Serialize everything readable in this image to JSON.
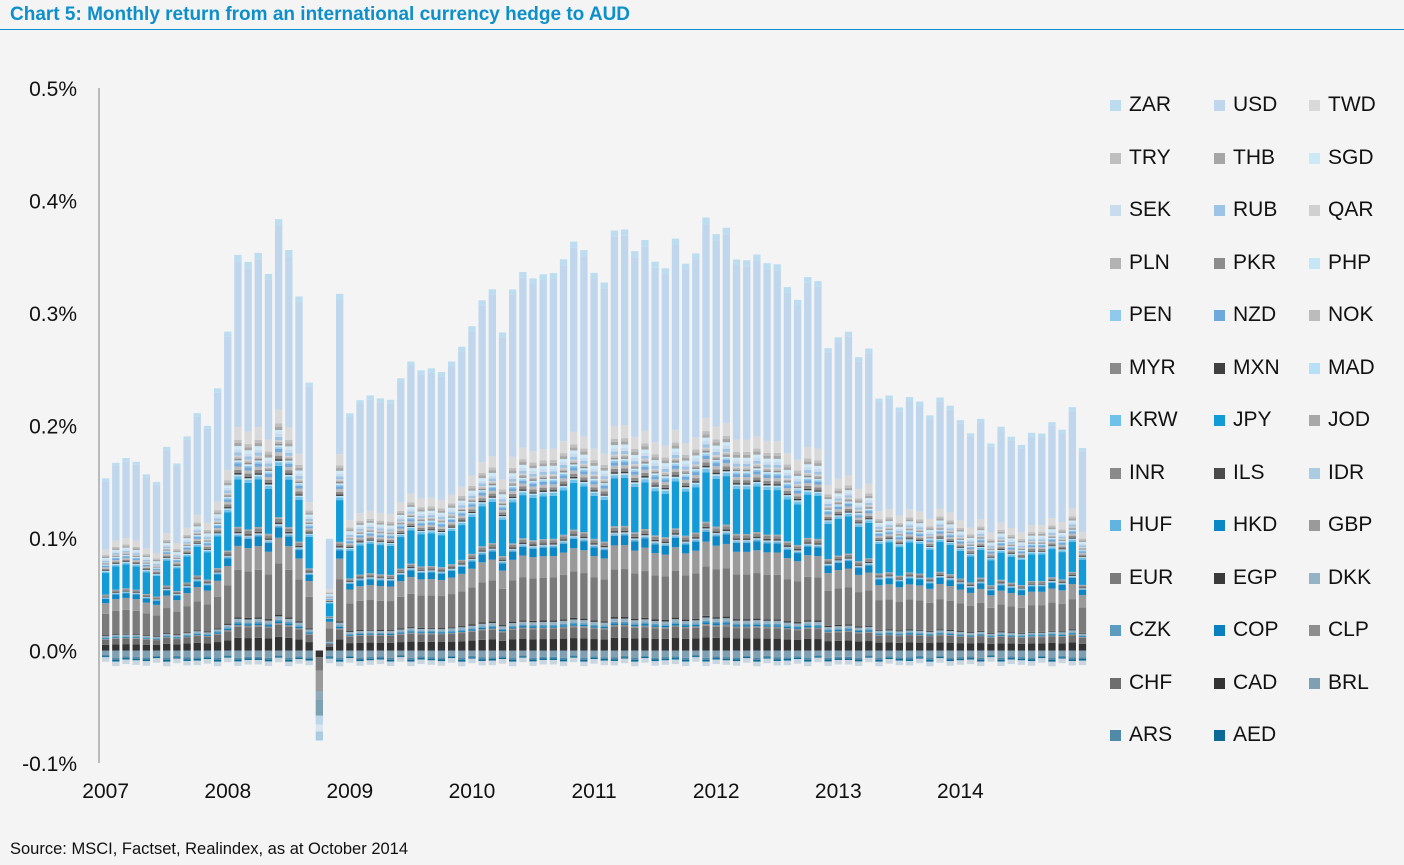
{
  "title": "Chart 5: Monthly return from an international currency hedge to AUD",
  "source": "Source: MSCI, Factset, Realindex, as at October 2014",
  "chart_data": {
    "type": "bar",
    "stacked": true,
    "title": "Chart 5: Monthly return from an international currency hedge to AUD",
    "xlabel": "",
    "ylabel": "",
    "ylim": [
      -0.1,
      0.5
    ],
    "yticks": [
      -0.1,
      0.0,
      0.1,
      0.2,
      0.3,
      0.4,
      0.5
    ],
    "ytick_labels": [
      "-0.1%",
      "0.0%",
      "0.1%",
      "0.2%",
      "0.3%",
      "0.4%",
      "0.5%"
    ],
    "xtick_labels": [
      "2007",
      "2008",
      "2009",
      "2010",
      "2011",
      "2012",
      "2013",
      "2014"
    ],
    "x_range": [
      "2007-01",
      "2014-09"
    ],
    "legend_position": "right",
    "grid": false,
    "monthly_totals": [
      0.147,
      0.157,
      0.163,
      0.159,
      0.147,
      0.143,
      0.171,
      0.159,
      0.181,
      0.202,
      0.192,
      0.223,
      0.277,
      0.342,
      0.337,
      0.345,
      0.325,
      0.377,
      0.346,
      0.307,
      0.229,
      -0.08,
      0.092,
      0.307,
      0.204,
      0.213,
      0.218,
      0.216,
      0.213,
      0.236,
      0.247,
      0.241,
      0.242,
      0.238,
      0.25,
      0.26,
      0.281,
      0.302,
      0.312,
      0.275,
      0.311,
      0.33,
      0.321,
      0.326,
      0.327,
      0.338,
      0.357,
      0.346,
      0.328,
      0.318,
      0.364,
      0.367,
      0.345,
      0.358,
      0.336,
      0.331,
      0.358,
      0.334,
      0.347,
      0.375,
      0.362,
      0.367,
      0.338,
      0.34,
      0.342,
      0.337,
      0.334,
      0.314,
      0.304,
      0.322,
      0.322,
      0.259,
      0.27,
      0.275,
      0.251,
      0.262,
      0.214,
      0.219,
      0.207,
      0.216,
      0.214,
      0.199,
      0.218,
      0.208,
      0.196,
      0.185,
      0.196,
      0.178,
      0.189,
      0.182,
      0.174,
      0.184,
      0.186,
      0.193,
      0.189,
      0.207,
      0.171
    ],
    "composition_note": "Estimated average currency contributions (percentage points) to each monthly total",
    "series": [
      {
        "name": "ZAR",
        "color": "#bcdcf0",
        "approx_share": 0.004
      },
      {
        "name": "USD",
        "color": "#bfd6ec",
        "approx_share": 0.095
      },
      {
        "name": "TWD",
        "color": "#d9d9d9",
        "approx_share": 0.008
      },
      {
        "name": "TRY",
        "color": "#bfbfbf",
        "approx_share": 0.002
      },
      {
        "name": "THB",
        "color": "#a6a6a6",
        "approx_share": 0.002
      },
      {
        "name": "SGD",
        "color": "#cce9f8",
        "approx_share": 0.002
      },
      {
        "name": "SEK",
        "color": "#c8dcee",
        "approx_share": 0.002
      },
      {
        "name": "RUB",
        "color": "#9dc3e6",
        "approx_share": 0.002
      },
      {
        "name": "QAR",
        "color": "#d0d0d0",
        "approx_share": 0.001
      },
      {
        "name": "PLN",
        "color": "#b3b3b3",
        "approx_share": 0.001
      },
      {
        "name": "PKR",
        "color": "#8c8c8c",
        "approx_share": 0.001
      },
      {
        "name": "PHP",
        "color": "#c5e6f7",
        "approx_share": 0.001
      },
      {
        "name": "PEN",
        "color": "#8fc9ec",
        "approx_share": 0.001
      },
      {
        "name": "NZD",
        "color": "#6fa8dc",
        "approx_share": 0.002
      },
      {
        "name": "NOK",
        "color": "#bcbcbc",
        "approx_share": 0.002
      },
      {
        "name": "MYR",
        "color": "#8a8a8a",
        "approx_share": 0.002
      },
      {
        "name": "MXN",
        "color": "#404040",
        "approx_share": 0.001
      },
      {
        "name": "MAD",
        "color": "#b6e0f5",
        "approx_share": 0.001
      },
      {
        "name": "KRW",
        "color": "#6ec1ea",
        "approx_share": 0.002
      },
      {
        "name": "JPY",
        "color": "#139bd8",
        "approx_share": 0.03
      },
      {
        "name": "JOD",
        "color": "#a8a8a8",
        "approx_share": 0.001
      },
      {
        "name": "INR",
        "color": "#8a8a8a",
        "approx_share": 0.002
      },
      {
        "name": "ILS",
        "color": "#4a4a4a",
        "approx_share": 0.001
      },
      {
        "name": "IDR",
        "color": "#a9cce3",
        "approx_share": 0.001
      },
      {
        "name": "HUF",
        "color": "#62b4e0",
        "approx_share": 0.001
      },
      {
        "name": "HKD",
        "color": "#0b86c6",
        "approx_share": 0.006
      },
      {
        "name": "GBP",
        "color": "#9a9a9a",
        "approx_share": 0.015
      },
      {
        "name": "EUR",
        "color": "#7a7a7a",
        "approx_share": 0.03
      },
      {
        "name": "EGP",
        "color": "#3a3a3a",
        "approx_share": 0.001
      },
      {
        "name": "DKK",
        "color": "#95b3c4",
        "approx_share": 0.002
      },
      {
        "name": "CZK",
        "color": "#5b9bc0",
        "approx_share": 0.001
      },
      {
        "name": "COP",
        "color": "#0a7fbf",
        "approx_share": 0.001
      },
      {
        "name": "CLP",
        "color": "#8e8e8e",
        "approx_share": 0.001
      },
      {
        "name": "CHF",
        "color": "#6e6e6e",
        "approx_share": 0.007
      },
      {
        "name": "CAD",
        "color": "#333333",
        "approx_share": 0.008
      },
      {
        "name": "BRL",
        "color": "#7f9fb3",
        "approx_share": -0.004
      },
      {
        "name": "ARS",
        "color": "#4f8aa8",
        "approx_share": -0.001
      },
      {
        "name": "AED",
        "color": "#0c6a97",
        "approx_share": -0.001
      }
    ]
  }
}
